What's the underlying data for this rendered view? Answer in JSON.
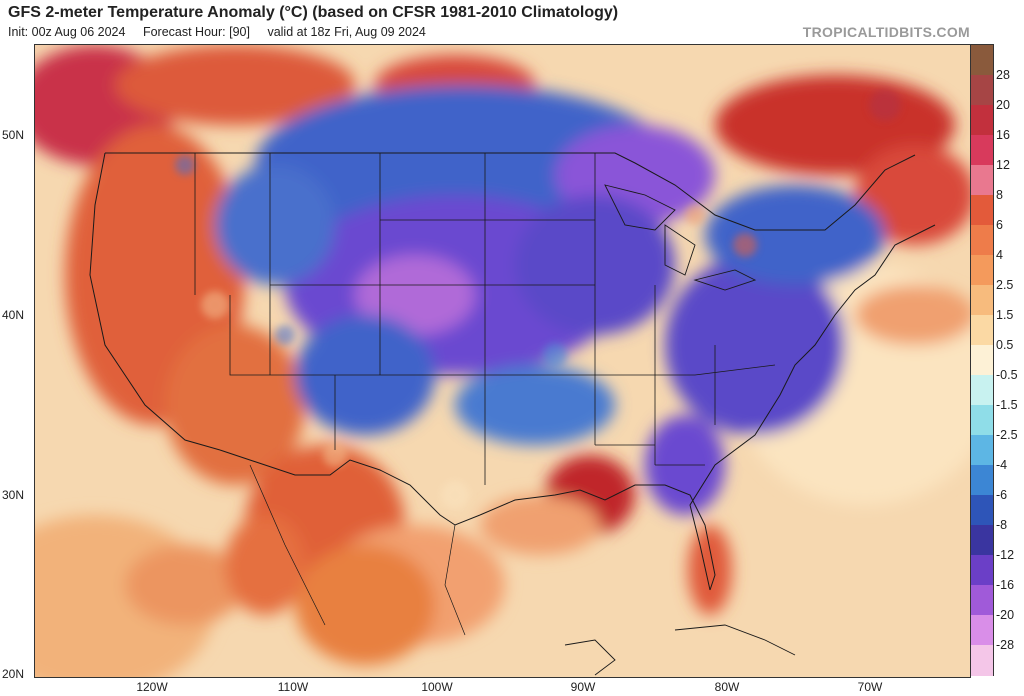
{
  "header": {
    "title": "GFS 2-meter Temperature Anomaly (°C) (based on CFSR 1981-2010 Climatology)",
    "init": "Init: 00z Aug 06 2024",
    "forecast_hour": "Forecast Hour: [90]",
    "valid": "valid at 18z Fri, Aug 09 2024",
    "brand": "TROPICALTIDBITS.COM"
  },
  "map": {
    "lat_labels": [
      "50N",
      "40N",
      "30N",
      "20N"
    ],
    "lon_labels": [
      "120W",
      "110W",
      "100W",
      "90W",
      "80W",
      "70W"
    ],
    "colors": {
      "ocean": "#f6d8b0",
      "warm": "#e8743a",
      "hot": "#c9302a",
      "cool_blue": "#3f63c9",
      "cold_purple": "#7a4fd6",
      "very_cold": "#b06ad8",
      "neutral": "#fbeed6",
      "borders": "#1a1a1a"
    }
  },
  "colorbar": {
    "labels": [
      "28",
      "20",
      "16",
      "12",
      "8",
      "6",
      "4",
      "2.5",
      "1.5",
      "0.5",
      "-0.5",
      "-1.5",
      "-2.5",
      "-4",
      "-6",
      "-8",
      "-12",
      "-16",
      "-20",
      "-28"
    ],
    "colors": [
      "#8a5a3c",
      "#a64545",
      "#c2303d",
      "#d83a5c",
      "#e9788f",
      "#e35a3a",
      "#ee7c4a",
      "#f49a5c",
      "#f7bb7d",
      "#fbd9a4",
      "#fdf1d6",
      "#c8f2f0",
      "#8fdde8",
      "#5db6e4",
      "#3c86d4",
      "#2e55b8",
      "#3a35a0",
      "#6b3fc7",
      "#a05ad9",
      "#d98ee8",
      "#f4c6e8"
    ]
  }
}
